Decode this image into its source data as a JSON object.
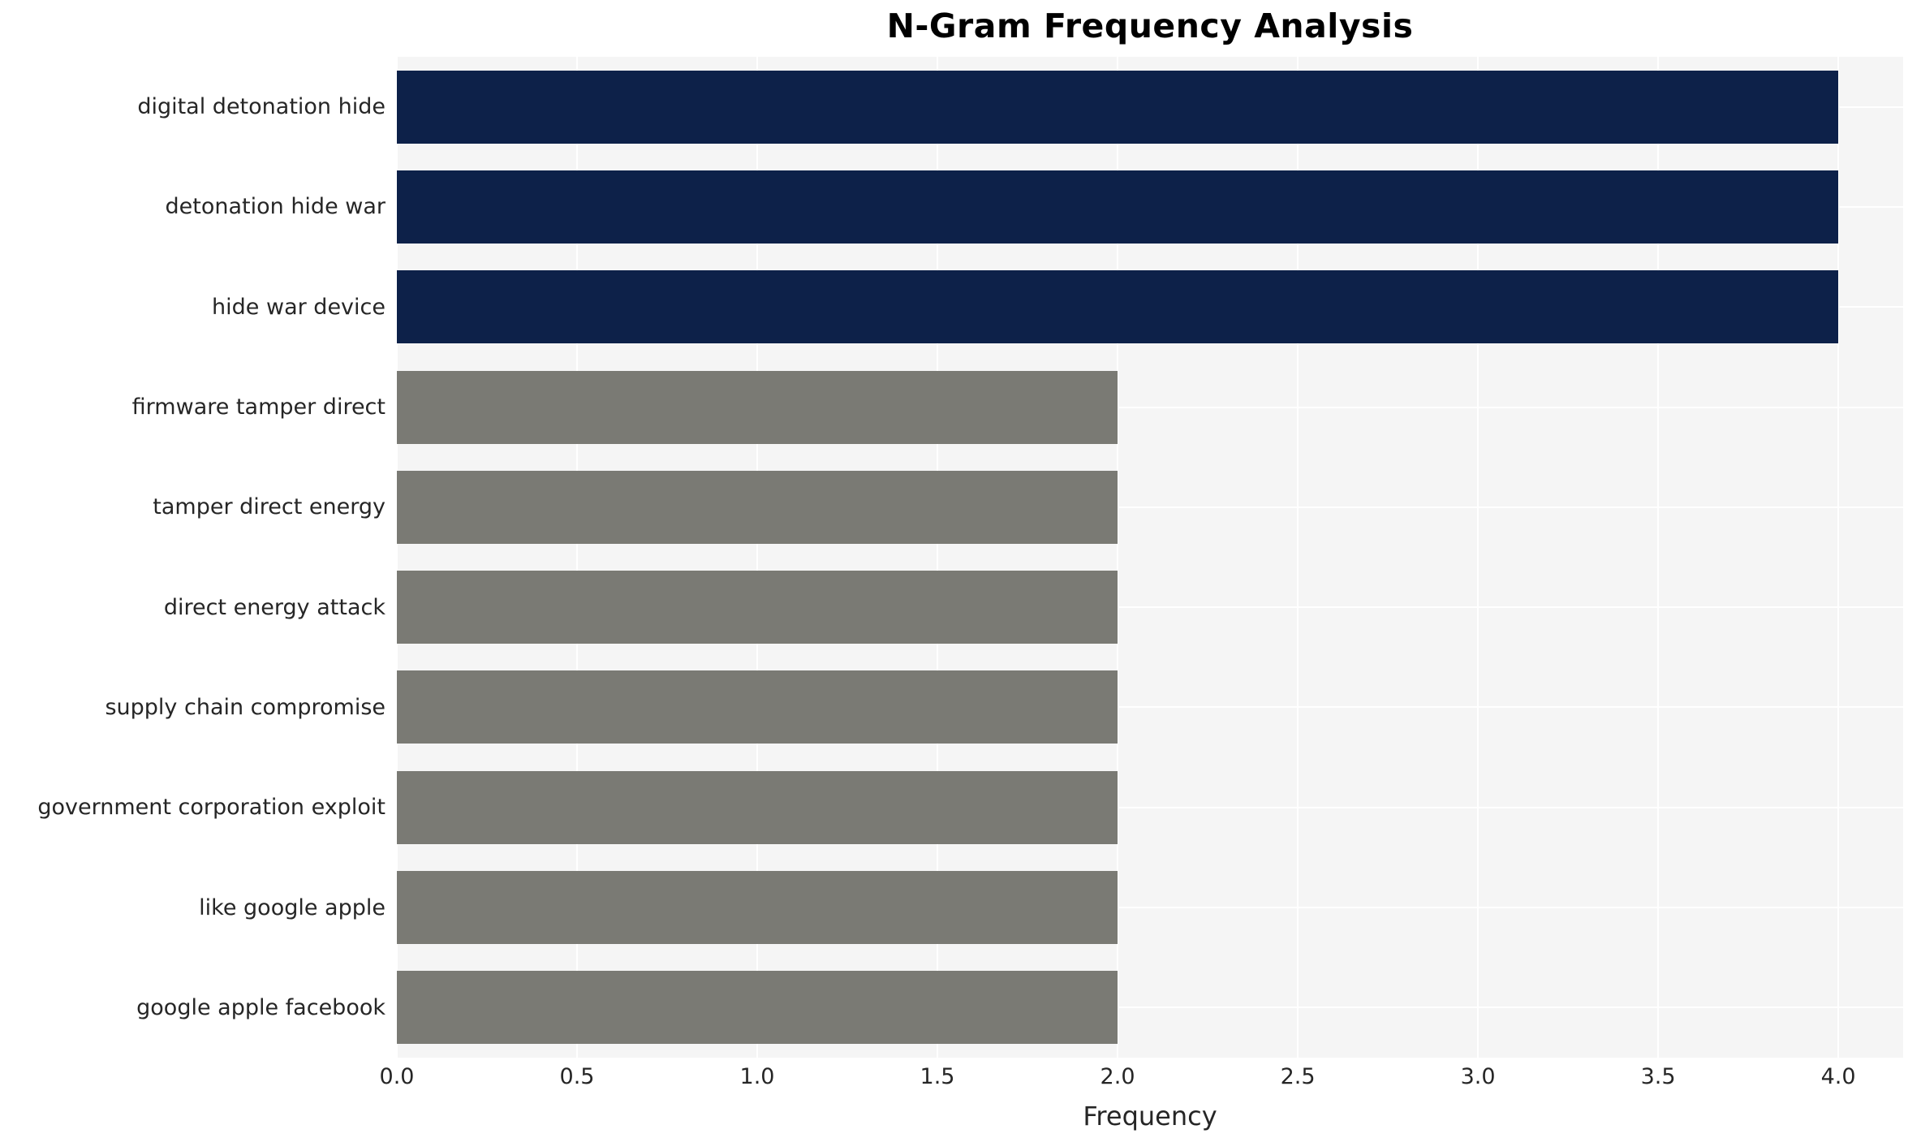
{
  "chart_data": {
    "type": "bar",
    "orientation": "horizontal",
    "title": "N-Gram Frequency Analysis",
    "xlabel": "Frequency",
    "ylabel": "",
    "categories": [
      "digital detonation hide",
      "detonation hide war",
      "hide war device",
      "firmware tamper direct",
      "tamper direct energy",
      "direct energy attack",
      "supply chain compromise",
      "government corporation exploit",
      "like google apple",
      "google apple facebook"
    ],
    "values": [
      4,
      4,
      4,
      2,
      2,
      2,
      2,
      2,
      2,
      2
    ],
    "bar_colors": [
      "#0d2149",
      "#0d2149",
      "#0d2149",
      "#7a7a74",
      "#7a7a74",
      "#7a7a74",
      "#7a7a74",
      "#7a7a74",
      "#7a7a74",
      "#7a7a74"
    ],
    "xlim": [
      0,
      4.18
    ],
    "xticks": [
      "0.0",
      "0.5",
      "1.0",
      "1.5",
      "2.0",
      "2.5",
      "3.0",
      "3.5",
      "4.0"
    ],
    "xtick_values": [
      0,
      0.5,
      1,
      1.5,
      2,
      2.5,
      3,
      3.5,
      4
    ],
    "grid": true,
    "legend": false,
    "colors": {
      "highlight": "#0d2149",
      "default": "#7a7a74",
      "plot_background": "#f5f5f5",
      "figure_background": "#ffffff",
      "gridline": "#ffffff",
      "text": "#262626"
    }
  }
}
